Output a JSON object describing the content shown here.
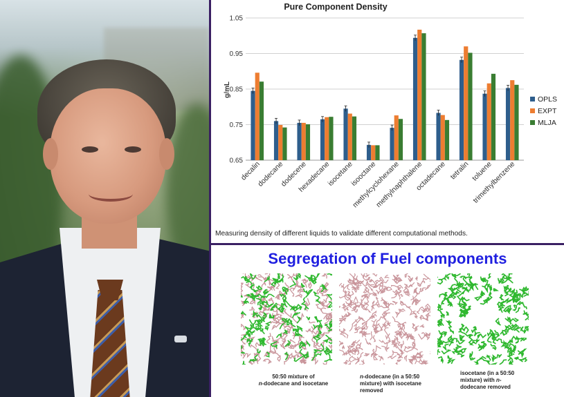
{
  "chart_data": {
    "type": "bar",
    "title": "Pure Component Density",
    "ylabel": "g/mL",
    "xlabel": "",
    "ylim": [
      0.65,
      1.05
    ],
    "yticks": [
      "0.65",
      "0.75",
      "0.85",
      "0.95",
      "1.05"
    ],
    "grid": true,
    "legend_position": "right",
    "categories": [
      "decalin",
      "dodecane",
      "dodecene",
      "hexadecane",
      "isocetane",
      "isooctane",
      "methylcyclohexane",
      "methylnaphthalene",
      "octadecane",
      "tetralin",
      "toluene",
      "trimethylbenzene"
    ],
    "series": [
      {
        "name": "OPLS",
        "color": "#2e5e8c",
        "values": [
          0.845,
          0.76,
          0.755,
          0.765,
          0.795,
          0.693,
          0.741,
          0.994,
          0.783,
          0.932,
          0.837,
          0.853
        ]
      },
      {
        "name": "EXPT",
        "color": "#ed7d31",
        "values": [
          0.896,
          0.749,
          0.755,
          0.771,
          0.781,
          0.692,
          0.776,
          1.017,
          0.777,
          0.97,
          0.866,
          0.875
        ]
      },
      {
        "name": "MLJA",
        "color": "#3a7d32",
        "values": [
          0.871,
          0.742,
          0.751,
          0.772,
          0.773,
          0.692,
          0.766,
          1.007,
          0.763,
          0.952,
          0.893,
          0.862
        ]
      }
    ]
  },
  "caption": "Measuring density of different liquids to validate different computational methods.",
  "segregation": {
    "title": "Segregation of Fuel components",
    "panels": [
      {
        "caption_line1": "50:50 mixture of",
        "caption_line2_italic": "n",
        "caption_line2_rest": "-dodecane and isocetane",
        "caption_line3": ""
      },
      {
        "caption_line1_italic": "n",
        "caption_line1_rest": "-dodecane (in a 50:50",
        "caption_line2": "mixture) with isocetane",
        "caption_line3": "removed"
      },
      {
        "caption_line1": "isocetane (in a 50:50",
        "caption_line2_pre": "mixture) with ",
        "caption_line2_italic": "n",
        "caption_line2_rest": "-",
        "caption_line3": "dodecane removed"
      }
    ],
    "colors": {
      "dodecane": "#c9959b",
      "isocetane": "#2fb82f"
    }
  }
}
